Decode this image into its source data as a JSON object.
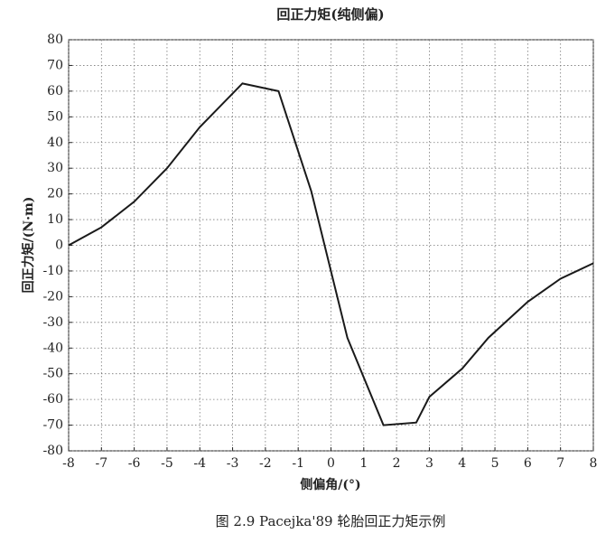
{
  "chart_data": {
    "type": "line",
    "title": "回正力矩(纯侧偏)",
    "x_label": "侧偏角/(°)",
    "y_label": "回正力矩/(N·m)",
    "caption": "图 2.9   Pacejka'89 轮胎回正力矩示例",
    "x": [
      -8,
      -7,
      -6,
      -5,
      -4,
      -2.7,
      -1.6,
      -0.6,
      0.5,
      1.6,
      2.6,
      3,
      4,
      4.8,
      6,
      7,
      8
    ],
    "series": [
      {
        "color": "#1a1a1a",
        "values": [
          0,
          7,
          17,
          30,
          46,
          63,
          60,
          21,
          -36,
          -70,
          -69,
          -59,
          -48,
          -36,
          -22,
          -13,
          -7
        ]
      }
    ],
    "xlim": [
      -8,
      8
    ],
    "xticks": [
      -8,
      -7,
      -6,
      -5,
      -4,
      -3,
      -2,
      -1,
      0,
      1,
      2,
      3,
      4,
      5,
      6,
      7,
      8
    ],
    "ylim": [
      -80,
      80
    ],
    "yticks": [
      -80,
      -70,
      -60,
      -50,
      -40,
      -30,
      -20,
      -10,
      0,
      10,
      20,
      30,
      40,
      50,
      60,
      70,
      80
    ],
    "grid": true
  }
}
